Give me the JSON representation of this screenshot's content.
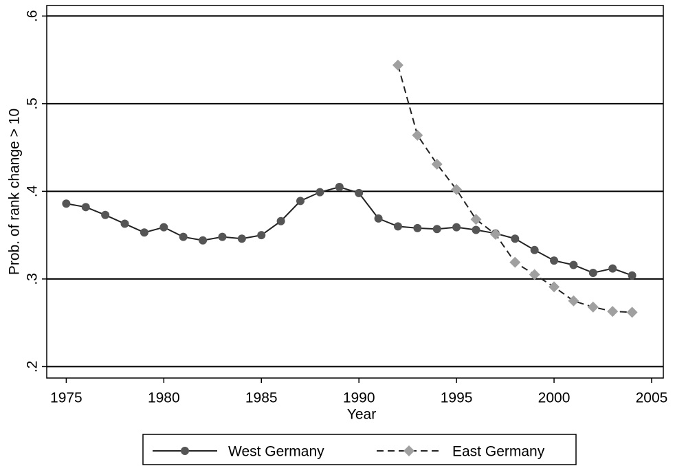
{
  "chart_data": {
    "type": "line",
    "x_label": "Year",
    "y_label": "Prob. of rank change > 10",
    "x": [
      1975,
      1976,
      1977,
      1978,
      1979,
      1980,
      1981,
      1982,
      1983,
      1984,
      1985,
      1986,
      1987,
      1988,
      1989,
      1990,
      1991,
      1992,
      1993,
      1994,
      1995,
      1996,
      1997,
      1998,
      1999,
      2000,
      2001,
      2002,
      2003,
      2004
    ],
    "series": [
      {
        "name": "West Germany",
        "color": "#555555",
        "line_color": "#222222",
        "dash": "solid",
        "marker": "circle",
        "values": [
          0.386,
          0.382,
          0.373,
          0.363,
          0.353,
          0.359,
          0.348,
          0.344,
          0.348,
          0.346,
          0.35,
          0.366,
          0.389,
          0.399,
          0.405,
          0.398,
          0.369,
          0.36,
          0.358,
          0.357,
          0.359,
          0.356,
          0.352,
          0.346,
          0.333,
          0.321,
          0.316,
          0.307,
          0.312,
          0.304
        ]
      },
      {
        "name": "East Germany",
        "color": "#a0a0a0",
        "line_color": "#222222",
        "dash": "dashed",
        "marker": "diamond",
        "values": [
          null,
          null,
          null,
          null,
          null,
          null,
          null,
          null,
          null,
          null,
          null,
          null,
          null,
          null,
          null,
          null,
          null,
          0.544,
          0.464,
          0.431,
          0.402,
          0.368,
          0.351,
          0.319,
          0.305,
          0.291,
          0.275,
          0.268,
          0.263,
          0.262
        ]
      }
    ],
    "xlim": [
      1974,
      2005.6
    ],
    "xticks": [
      1975,
      1980,
      1985,
      1990,
      1995,
      2000,
      2005
    ],
    "ylim": [
      0.187,
      0.612
    ],
    "yticks": [
      {
        "value": 0.2,
        "label": ".2"
      },
      {
        "value": 0.3,
        "label": ".3"
      },
      {
        "value": 0.4,
        "label": ".4"
      },
      {
        "value": 0.5,
        "label": ".5"
      },
      {
        "value": 0.6,
        "label": ".6"
      }
    ],
    "grid": true,
    "legend": "bottom"
  }
}
